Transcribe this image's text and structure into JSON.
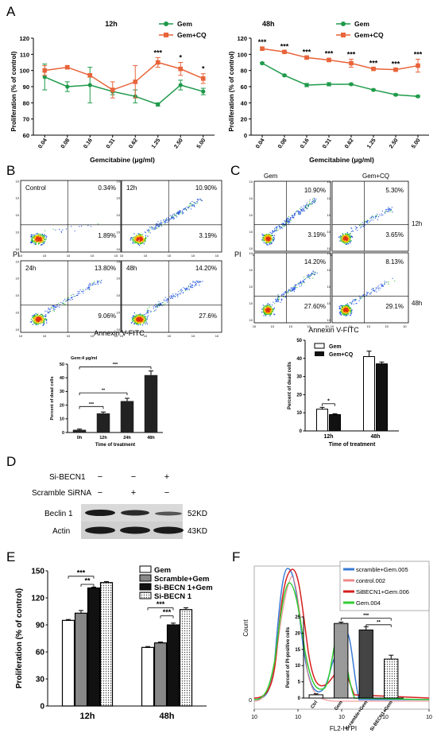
{
  "panel_letters": {
    "a": "A",
    "b": "B",
    "c": "C",
    "d": "D",
    "e": "E",
    "f": "F"
  },
  "panelA": {
    "left_title": "12h",
    "right_title": "48h",
    "ylabel": "Proliferation (% of control)",
    "xlabel": "Gemcitabine (μg/ml)",
    "legend": [
      "Gem",
      "Gem+CQ"
    ],
    "colors": {
      "gem": "#1e9a4a",
      "gemcq": "#e8643a"
    }
  },
  "chart_data": [
    {
      "type": "line",
      "title": "12h",
      "xlabel": "Gemcitabine (μg/ml)",
      "ylabel": "Proliferation (% of control)",
      "categories": [
        "0.04",
        "0.08",
        "0.16",
        "0.31",
        "0.62",
        "1.25",
        "2.50",
        "5.00"
      ],
      "ylim": [
        60,
        120
      ],
      "yticks": [
        60,
        70,
        80,
        90,
        100,
        110,
        120
      ],
      "series": [
        {
          "name": "Gem",
          "values": [
            96,
            90,
            91,
            87,
            84,
            79,
            91,
            87
          ],
          "err": [
            8,
            3,
            11,
            2,
            4,
            1,
            3,
            2
          ]
        },
        {
          "name": "Gem+CQ",
          "values": [
            100,
            102,
            97,
            88,
            93,
            105,
            101,
            95
          ],
          "err": [
            3,
            1,
            1,
            5,
            10,
            3,
            4,
            3
          ]
        }
      ],
      "annotations": [
        {
          "index": 5,
          "text": "***"
        },
        {
          "index": 6,
          "text": "*"
        },
        {
          "index": 7,
          "text": "*"
        }
      ]
    },
    {
      "type": "line",
      "title": "48h",
      "xlabel": "Gemcitabine (μg/ml)",
      "ylabel": "Proliferation (% of control)",
      "categories": [
        "0.04",
        "0.08",
        "0.16",
        "0.31",
        "0.62",
        "1.25",
        "2.50",
        "5.00"
      ],
      "ylim": [
        0,
        120
      ],
      "yticks": [
        0,
        20,
        40,
        60,
        80,
        100,
        120
      ],
      "series": [
        {
          "name": "Gem",
          "values": [
            89,
            74,
            62,
            63,
            63,
            56,
            50,
            48
          ],
          "err": [
            1,
            1,
            2,
            2,
            1,
            1,
            1,
            1
          ]
        },
        {
          "name": "Gem+CQ",
          "values": [
            107,
            103,
            96,
            93,
            89,
            82,
            81,
            86
          ],
          "err": [
            2,
            1,
            1,
            2,
            5,
            1,
            1,
            8
          ]
        }
      ],
      "annotations": [
        {
          "index": 0,
          "text": "***"
        },
        {
          "index": 1,
          "text": "***"
        },
        {
          "index": 2,
          "text": "***"
        },
        {
          "index": 3,
          "text": "***"
        },
        {
          "index": 4,
          "text": "***"
        },
        {
          "index": 5,
          "text": "***"
        },
        {
          "index": 6,
          "text": "***"
        },
        {
          "index": 7,
          "text": "***"
        }
      ]
    },
    {
      "type": "bar",
      "title": "Gem:4 μg/ml",
      "xlabel": "Time of treatment",
      "ylabel": "Percent of dead cells",
      "categories": [
        "0h",
        "12h",
        "24h",
        "48h"
      ],
      "values": [
        2,
        14,
        23,
        42
      ],
      "err": [
        0.5,
        1,
        2,
        3
      ],
      "ylim": [
        0,
        50
      ],
      "yticks": [
        0,
        10,
        20,
        30,
        40,
        50
      ],
      "significance": [
        {
          "from": 0,
          "to": 1,
          "text": "***"
        },
        {
          "from": 0,
          "to": 2,
          "text": "**"
        },
        {
          "from": 0,
          "to": 3,
          "text": "***"
        }
      ]
    },
    {
      "type": "bar",
      "xlabel": "Time of treatment",
      "ylabel": "Percent of dead cells",
      "categories": [
        "12h",
        "48h"
      ],
      "series": [
        {
          "name": "Gem",
          "values": [
            12,
            41
          ],
          "err": [
            1,
            3
          ]
        },
        {
          "name": "Gem+CQ",
          "values": [
            9,
            37
          ],
          "err": [
            0.5,
            1
          ]
        }
      ],
      "ylim": [
        0,
        50
      ],
      "yticks": [
        0,
        10,
        20,
        30,
        40,
        50
      ],
      "significance": [
        {
          "group": 0,
          "text": "*"
        }
      ]
    },
    {
      "type": "bar",
      "xlabel": "",
      "ylabel": "Proliferation (% of control)",
      "categories": [
        "12h",
        "48h"
      ],
      "series": [
        {
          "name": "Gem",
          "values": [
            95,
            65
          ],
          "err": [
            1,
            1
          ]
        },
        {
          "name": "Scramble+Gem",
          "values": [
            103,
            70
          ],
          "err": [
            3,
            1
          ]
        },
        {
          "name": "Si-BECN 1+Gem",
          "values": [
            131,
            90
          ],
          "err": [
            1,
            2
          ]
        },
        {
          "name": "Si-BECN 1",
          "values": [
            137,
            107
          ],
          "err": [
            1,
            2
          ]
        }
      ],
      "ylim": [
        0,
        150
      ],
      "yticks": [
        0,
        30,
        60,
        90,
        120,
        150
      ],
      "significance": [
        {
          "group": 0,
          "from": 0,
          "to": 2,
          "text": "***"
        },
        {
          "group": 0,
          "from": 1,
          "to": 2,
          "text": "**"
        },
        {
          "group": 1,
          "from": 0,
          "to": 2,
          "text": "***"
        },
        {
          "group": 1,
          "from": 1,
          "to": 2,
          "text": "***"
        }
      ]
    },
    {
      "type": "bar",
      "xlabel": "",
      "ylabel": "Percent of PI-positive cells",
      "categories": [
        "Ctrl",
        "Gem",
        "Scramble+Gem",
        "Si-BECN1+Gem"
      ],
      "values": [
        1,
        23,
        21,
        12
      ],
      "err": [
        0.3,
        0.4,
        1,
        1.2
      ],
      "ylim": [
        0,
        25
      ],
      "yticks": [
        0,
        5,
        10,
        15,
        20,
        25
      ],
      "significance": [
        {
          "from": 1,
          "to": 3,
          "text": "***"
        },
        {
          "from": 2,
          "to": 3,
          "text": "**"
        }
      ]
    }
  ],
  "panelB": {
    "quadrant_labels": [
      "Control",
      "12h",
      "24h",
      "48h"
    ],
    "values": [
      [
        "0.34%",
        "1.89%"
      ],
      [
        "10.90%",
        "3.19%"
      ],
      [
        "13.80%",
        "9.06%"
      ],
      [
        "14.20%",
        "27.6%"
      ]
    ],
    "ylabel": "PI",
    "xlabel": "Annexin V-FITC"
  },
  "panelC": {
    "cols": [
      "Gem",
      "Gem+CQ"
    ],
    "rows": [
      "12h",
      "48h"
    ],
    "values": [
      [
        "10.90%",
        "3.19%"
      ],
      [
        "5.30%",
        "3.65%"
      ],
      [
        "14.20%",
        "27.60%"
      ],
      [
        "8.13%",
        "29.1%"
      ]
    ],
    "ylabel": "PI",
    "xlabel": "Annexin V-FITC"
  },
  "panelD": {
    "row1": "Si-BECN1",
    "row2": "Scramble SiRNA",
    "row1_marks": [
      "−",
      "−",
      "+"
    ],
    "row2_marks": [
      "−",
      "+",
      "−"
    ],
    "band1": "Beclin 1",
    "band2": "Actin",
    "kd1": "52KD",
    "kd2": "43KD"
  },
  "panelF": {
    "legend": [
      "scramble+Gem.005",
      "control.002",
      "SiBECN1+Gem.006",
      "Gem.004"
    ],
    "legend_colors": [
      "#3a7bd5",
      "#f08a8a",
      "#d81e1e",
      "#33cc33"
    ],
    "ylabel": "Count",
    "xlabel": "FL2-H: PI"
  }
}
